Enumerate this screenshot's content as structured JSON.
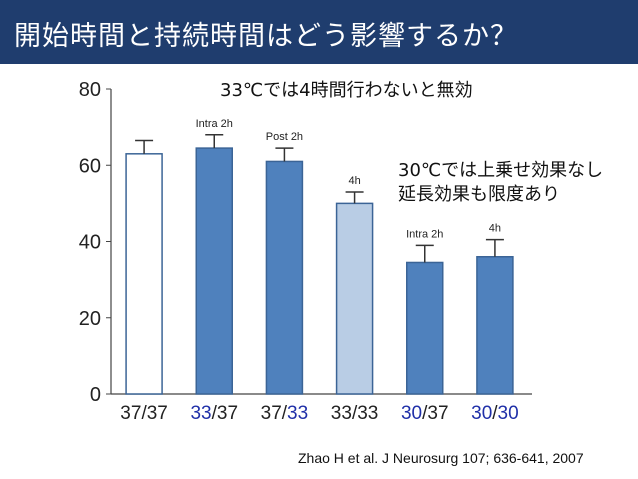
{
  "slide": {
    "title": "開始時間と持続時間はどう影響するか？",
    "note_33": "33℃では4時間行わないと無効",
    "note_30_line1": "30℃では上乗せ効果なし",
    "note_30_line2": "延長効果も限度あり",
    "citation": "Zhao H et al. J Neurosurg 107; 636-641, 2007"
  },
  "colors": {
    "title_bg": "#1f3d6e",
    "bar_dark": "#4f81bd",
    "bar_light": "#b9cde5",
    "bar_white": "#ffffff",
    "bar_edge": "#3b6496",
    "highlight_text": "#1f2fa8"
  },
  "chart_data": {
    "type": "bar",
    "categories": [
      "37/37",
      "33/37",
      "37/33",
      "33/33",
      "30/37",
      "30/30"
    ],
    "category_parts": [
      [
        "37",
        "/",
        "37"
      ],
      [
        "33",
        "/",
        "37"
      ],
      [
        "37",
        "/",
        "33"
      ],
      [
        "33",
        "/",
        "33"
      ],
      [
        "30",
        "/",
        "37"
      ],
      [
        "30",
        "/",
        "30"
      ]
    ],
    "category_highlight": [
      [
        false,
        false,
        false
      ],
      [
        true,
        false,
        false
      ],
      [
        false,
        false,
        true
      ],
      [
        false,
        false,
        false
      ],
      [
        true,
        false,
        false
      ],
      [
        true,
        false,
        true
      ]
    ],
    "values": [
      63,
      64.5,
      61,
      50,
      34.5,
      36
    ],
    "errors": [
      3.5,
      3.5,
      3.5,
      3,
      4.5,
      4.5
    ],
    "bar_labels": [
      "",
      "Intra 2h",
      "Post 2h",
      "4h",
      "Intra 2h",
      "4h"
    ],
    "bar_fill": [
      "white",
      "dark",
      "dark",
      "light",
      "dark",
      "dark"
    ],
    "yticks": [
      0,
      20,
      40,
      60,
      80
    ],
    "ylim": [
      0,
      80
    ],
    "title": "",
    "xlabel": "",
    "ylabel": "",
    "grid": false,
    "legend": "none"
  }
}
